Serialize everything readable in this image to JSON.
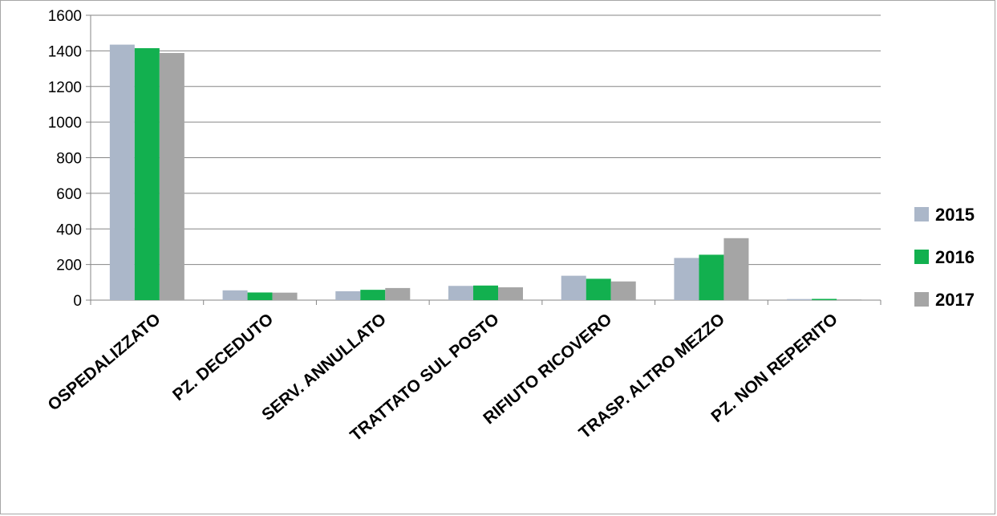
{
  "chart_data": {
    "type": "bar",
    "categories": [
      "OSPEDALIZZATO",
      "PZ. DECEDUTO",
      "SERV. ANNULLATO",
      "TRATTATO SUL POSTO",
      "RIFIUTO RICOVERO",
      "TRASP. ALTRO MEZZO",
      "PZ. NON REPERITO"
    ],
    "series": [
      {
        "name": "2015",
        "color": "#abb7c9",
        "values": [
          1435,
          55,
          50,
          80,
          137,
          237,
          6
        ]
      },
      {
        "name": "2016",
        "color": "#12b04f",
        "values": [
          1415,
          43,
          58,
          82,
          120,
          255,
          7
        ]
      },
      {
        "name": "2017",
        "color": "#a5a5a5",
        "values": [
          1388,
          42,
          68,
          72,
          105,
          348,
          4
        ]
      }
    ],
    "yticks": [
      "0",
      "200",
      "400",
      "600",
      "800",
      "1000",
      "1200",
      "1400",
      "1600"
    ],
    "ylim": [
      0,
      1600
    ],
    "grid": true,
    "legend_position": "right",
    "title": "",
    "xlabel": "",
    "ylabel": ""
  }
}
